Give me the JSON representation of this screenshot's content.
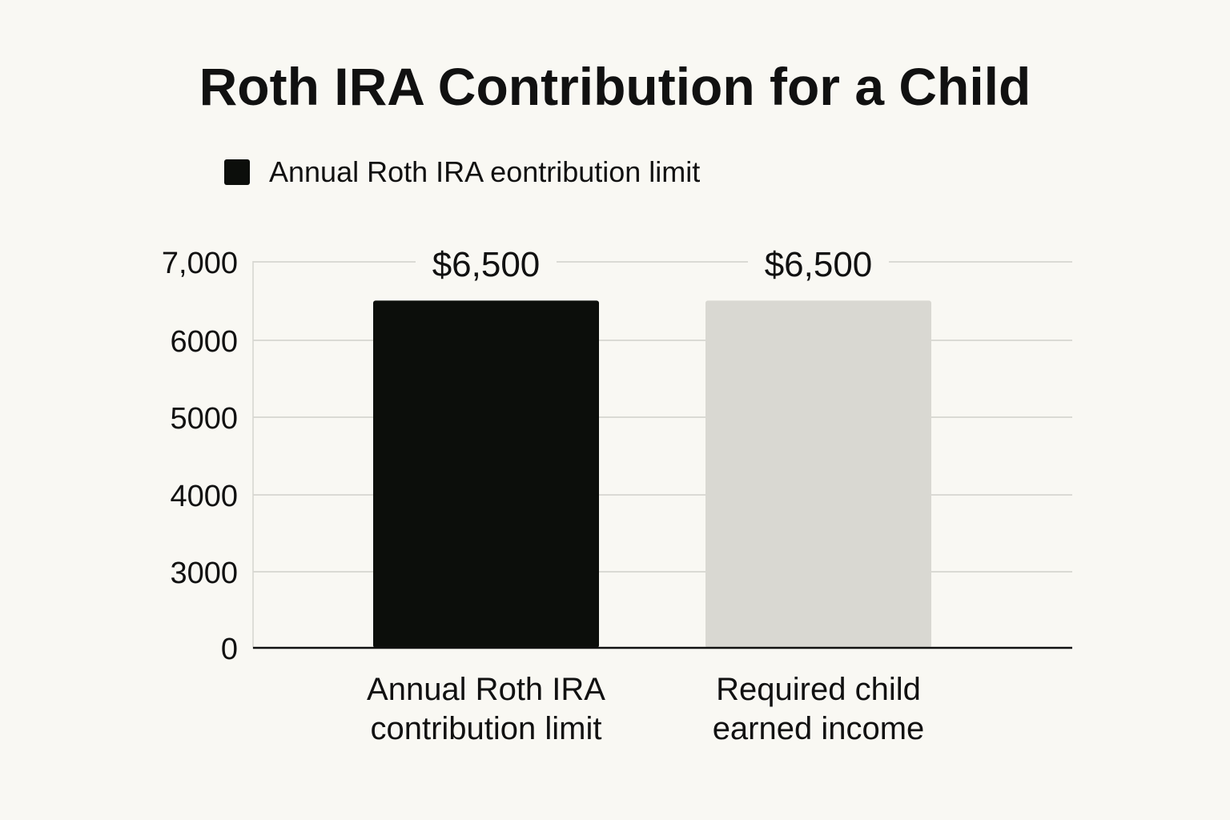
{
  "chart_data": {
    "type": "bar",
    "title": "Roth IRA Contribution for a Child",
    "legend": {
      "placement": "top-left",
      "entries": [
        {
          "label": "Annual Roth IRA eontribution limit",
          "color": "#0c0e0b"
        }
      ]
    },
    "categories": [
      [
        "Annual Roth IRA",
        "contribution limit"
      ],
      [
        "Required child",
        "earned income"
      ]
    ],
    "values": [
      6500,
      6500
    ],
    "data_labels": [
      "$6,500",
      "$6,500"
    ],
    "bar_colors": [
      "#0c0e0b",
      "#d9d8d2"
    ],
    "y_ticks": [
      {
        "value": 0,
        "label": "0"
      },
      {
        "value": 3000,
        "label": "3000"
      },
      {
        "value": 4000,
        "label": "4000"
      },
      {
        "value": 5000,
        "label": "5000"
      },
      {
        "value": 6000,
        "label": "6000"
      },
      {
        "value": 7000,
        "label": "7,000"
      }
    ],
    "ylim": [
      0,
      7000
    ],
    "grid": true,
    "xlabel": "",
    "ylabel": ""
  }
}
